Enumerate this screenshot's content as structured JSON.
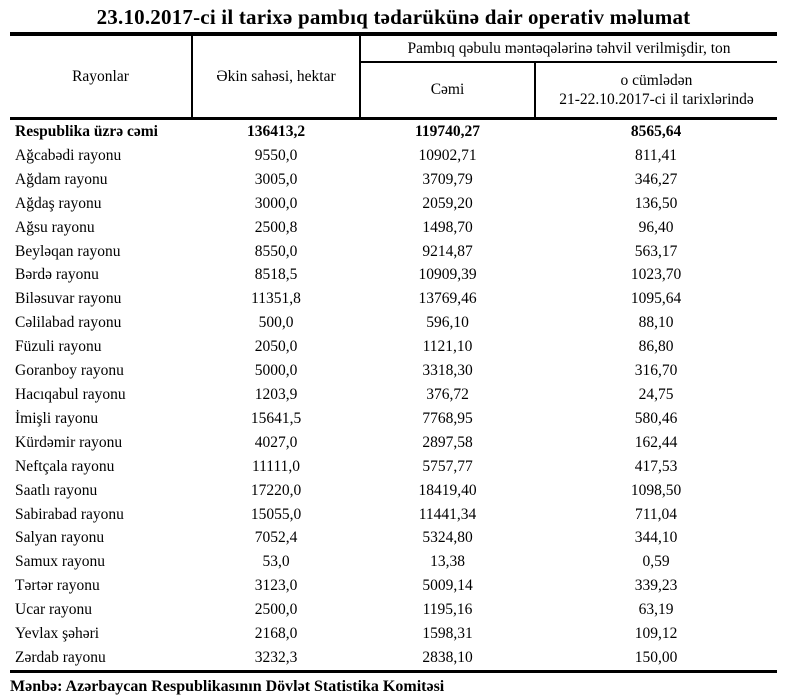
{
  "title": "23.10.2017-ci il tarixə pambıq tədarükünə dair operativ məlumat",
  "table": {
    "headers": {
      "regions": "Rayonlar",
      "sown_area": "Əkin sahəsi, hektar",
      "delivered_group": "Pambıq qəbulu məntəqələrinə təhvil verilmişdir, ton",
      "total": "Cəmi",
      "including_line1": "o cümlədən",
      "including_line2": "21-22.10.2017-ci il tarixlərində"
    },
    "total_row": {
      "name": "Respublika üzrə cəmi",
      "area": "136413,2",
      "total": "119740,27",
      "recent": "8565,64"
    },
    "rows": [
      {
        "name": "Ağcabədi rayonu",
        "area": "9550,0",
        "total": "10902,71",
        "recent": "811,41"
      },
      {
        "name": "Ağdam rayonu",
        "area": "3005,0",
        "total": "3709,79",
        "recent": "346,27"
      },
      {
        "name": "Ağdaş rayonu",
        "area": "3000,0",
        "total": "2059,20",
        "recent": "136,50"
      },
      {
        "name": "Ağsu rayonu",
        "area": "2500,8",
        "total": "1498,70",
        "recent": "96,40"
      },
      {
        "name": "Beyləqan rayonu",
        "area": "8550,0",
        "total": "9214,87",
        "recent": "563,17"
      },
      {
        "name": "Bərdə rayonu",
        "area": "8518,5",
        "total": "10909,39",
        "recent": "1023,70"
      },
      {
        "name": "Biləsuvar rayonu",
        "area": "11351,8",
        "total": "13769,46",
        "recent": "1095,64"
      },
      {
        "name": "Cəlilabad rayonu",
        "area": "500,0",
        "total": "596,10",
        "recent": "88,10"
      },
      {
        "name": "Füzuli rayonu",
        "area": "2050,0",
        "total": "1121,10",
        "recent": "86,80"
      },
      {
        "name": "Goranboy rayonu",
        "area": "5000,0",
        "total": "3318,30",
        "recent": "316,70"
      },
      {
        "name": "Hacıqabul rayonu",
        "area": "1203,9",
        "total": "376,72",
        "recent": "24,75"
      },
      {
        "name": "İmişli rayonu",
        "area": "15641,5",
        "total": "7768,95",
        "recent": "580,46"
      },
      {
        "name": "Kürdəmir rayonu",
        "area": "4027,0",
        "total": "2897,58",
        "recent": "162,44"
      },
      {
        "name": "Neftçala rayonu",
        "area": "11111,0",
        "total": "5757,77",
        "recent": "417,53"
      },
      {
        "name": "Saatlı rayonu",
        "area": "17220,0",
        "total": "18419,40",
        "recent": "1098,50"
      },
      {
        "name": "Sabirabad rayonu",
        "area": "15055,0",
        "total": "11441,34",
        "recent": "711,04"
      },
      {
        "name": "Salyan rayonu",
        "area": "7052,4",
        "total": "5324,80",
        "recent": "344,10"
      },
      {
        "name": "Samux rayonu",
        "area": "53,0",
        "total": "13,38",
        "recent": "0,59"
      },
      {
        "name": "Tərtər rayonu",
        "area": "3123,0",
        "total": "5009,14",
        "recent": "339,23"
      },
      {
        "name": "Ucar rayonu",
        "area": "2500,0",
        "total": "1195,16",
        "recent": "63,19"
      },
      {
        "name": "Yevlax şəhəri",
        "area": "2168,0",
        "total": "1598,31",
        "recent": "109,12"
      },
      {
        "name": "Zərdab rayonu",
        "area": "3232,3",
        "total": "2838,10",
        "recent": "150,00"
      }
    ]
  },
  "footer": "Mənbə: Azərbaycan Respublikasının Dövlət Statistika Komitəsi"
}
